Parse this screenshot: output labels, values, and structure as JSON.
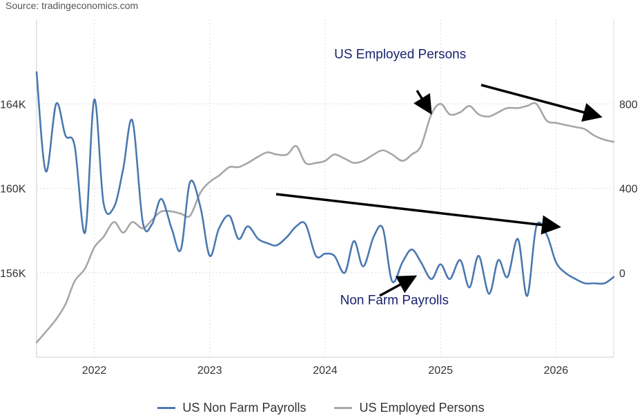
{
  "source": "Source: tradingeconomics.com",
  "chart_data": {
    "type": "line",
    "x_range": [
      2021.5,
      2026.5
    ],
    "x_ticks": [
      "2022",
      "2023",
      "2024",
      "2025",
      "2026"
    ],
    "grid": true,
    "legend_position": "bottom",
    "left_axis": {
      "ticks": [
        "164K",
        "160K",
        "156K"
      ],
      "range": [
        152000,
        168000
      ]
    },
    "right_axis": {
      "ticks": [
        "800",
        "400",
        "0"
      ],
      "range": [
        -400,
        1200
      ]
    },
    "series": [
      {
        "name": "US Non Farm Payrolls",
        "axis": "left",
        "color": "#4a78b0",
        "x": [
          2021.5,
          2021.58,
          2021.67,
          2021.75,
          2021.83,
          2021.92,
          2022.0,
          2022.08,
          2022.17,
          2022.25,
          2022.33,
          2022.42,
          2022.5,
          2022.58,
          2022.67,
          2022.75,
          2022.83,
          2022.92,
          2023.0,
          2023.08,
          2023.17,
          2023.25,
          2023.33,
          2023.42,
          2023.5,
          2023.58,
          2023.67,
          2023.75,
          2023.83,
          2023.92,
          2024.0,
          2024.08,
          2024.17,
          2024.25,
          2024.33,
          2024.42,
          2024.5,
          2024.58,
          2024.67,
          2024.75,
          2024.83,
          2024.92,
          2025.0,
          2025.08,
          2025.17,
          2025.25,
          2025.33,
          2025.42,
          2025.5,
          2025.58,
          2025.67,
          2025.75,
          2025.83,
          2025.92,
          2026.0,
          2026.08,
          2026.17,
          2026.25,
          2026.33,
          2026.42,
          2026.5
        ],
        "values": [
          165500,
          160800,
          164000,
          162500,
          162000,
          157900,
          164200,
          159300,
          159100,
          160900,
          163200,
          158400,
          158300,
          159500,
          158100,
          157100,
          160300,
          159100,
          156800,
          158100,
          158700,
          157600,
          158200,
          157600,
          157400,
          157300,
          157700,
          158200,
          158300,
          156800,
          156900,
          156800,
          156000,
          157500,
          156300,
          157700,
          158100,
          155600,
          156500,
          157100,
          156500,
          155700,
          156400,
          155700,
          156600,
          155300,
          156800,
          155000,
          156600,
          155800,
          157600,
          154900,
          158200,
          157800,
          156500,
          156000,
          155700,
          155500,
          155500,
          155500,
          155800
        ]
      },
      {
        "name": "US Employed Persons",
        "axis": "right",
        "color": "#a6a6a6",
        "x": [
          2021.5,
          2021.58,
          2021.67,
          2021.75,
          2021.83,
          2021.92,
          2022.0,
          2022.08,
          2022.17,
          2022.25,
          2022.33,
          2022.42,
          2022.5,
          2022.58,
          2022.67,
          2022.75,
          2022.83,
          2022.92,
          2023.0,
          2023.08,
          2023.17,
          2023.25,
          2023.33,
          2023.42,
          2023.5,
          2023.58,
          2023.67,
          2023.75,
          2023.83,
          2023.92,
          2024.0,
          2024.08,
          2024.17,
          2024.25,
          2024.33,
          2024.42,
          2024.5,
          2024.58,
          2024.67,
          2024.75,
          2024.83,
          2024.92,
          2025.0,
          2025.08,
          2025.17,
          2025.25,
          2025.33,
          2025.42,
          2025.5,
          2025.58,
          2025.67,
          2025.75,
          2025.83,
          2025.92,
          2026.0,
          2026.08,
          2026.17,
          2026.25,
          2026.33,
          2026.42,
          2026.5
        ],
        "values": [
          -330,
          -280,
          -220,
          -150,
          -40,
          20,
          120,
          170,
          240,
          190,
          240,
          210,
          250,
          290,
          290,
          280,
          270,
          380,
          430,
          460,
          500,
          500,
          520,
          550,
          570,
          560,
          560,
          600,
          520,
          520,
          530,
          560,
          540,
          520,
          530,
          560,
          580,
          560,
          530,
          560,
          600,
          750,
          800,
          750,
          760,
          790,
          750,
          740,
          760,
          780,
          780,
          790,
          800,
          720,
          710,
          700,
          690,
          680,
          650,
          630,
          620
        ]
      }
    ],
    "annotations": [
      {
        "text": "US Employed Persons",
        "x": 2024.65,
        "y_right": 1015
      },
      {
        "text": "Non Farm Payrolls",
        "x": 2024.6,
        "y_left": 154500
      }
    ]
  }
}
